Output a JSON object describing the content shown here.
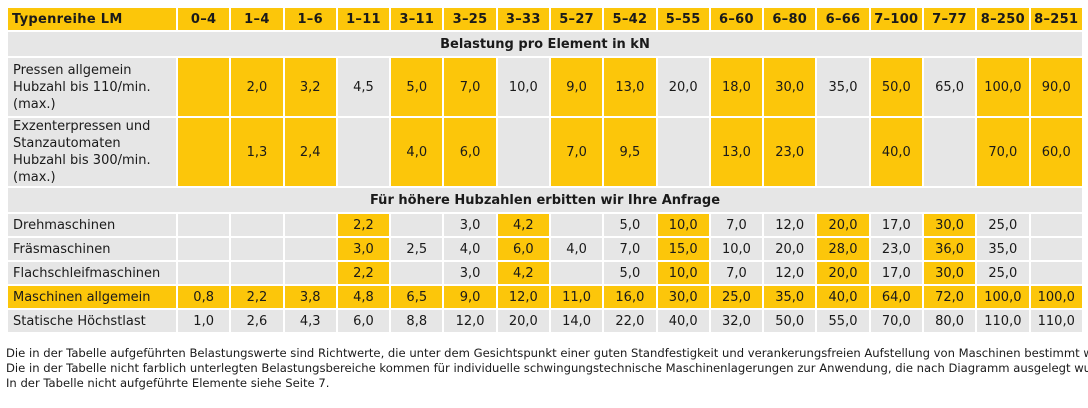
{
  "table": {
    "header_label": "Typenreihe LM",
    "columns": [
      "0–4",
      "1–4",
      "1–6",
      "1–11",
      "3–11",
      "3–25",
      "3–33",
      "5–27",
      "5–42",
      "5–55",
      "6–60",
      "6–80",
      "6–66",
      "7–100",
      "7–77",
      "8–250",
      "8–251"
    ],
    "section_load": "Belastung pro Element in kN",
    "section_inquiry": "Für höhere Hubzahlen erbitten wir Ihre Anfrage",
    "rows_presses": [
      {
        "label": "Pressen allgemein Hubzahl bis 110/min. (max.)",
        "values": [
          "",
          "2,0",
          "3,2",
          "4,5",
          "5,0",
          "7,0",
          "10,0",
          "9,0",
          "13,0",
          "20,0",
          "18,0",
          "30,0",
          "35,0",
          "50,0",
          "65,0",
          "100,0",
          "90,0"
        ],
        "highlight": [
          true,
          true,
          true,
          false,
          true,
          true,
          false,
          true,
          true,
          false,
          true,
          true,
          false,
          true,
          false,
          true,
          true
        ]
      },
      {
        "label": "Exzenterpressen und Stanzautomaten Hubzahl bis 300/min. (max.)",
        "values": [
          "",
          "1,3",
          "2,4",
          "",
          "4,0",
          "6,0",
          "",
          "7,0",
          "9,5",
          "",
          "13,0",
          "23,0",
          "",
          "40,0",
          "",
          "70,0",
          "60,0"
        ],
        "highlight": [
          true,
          true,
          true,
          false,
          true,
          true,
          false,
          true,
          true,
          false,
          true,
          true,
          false,
          true,
          false,
          true,
          true
        ]
      }
    ],
    "rows_machines": [
      {
        "label": "Drehmaschinen",
        "values": [
          "",
          "",
          "",
          "2,2",
          "",
          "3,0",
          "4,2",
          "",
          "5,0",
          "10,0",
          "7,0",
          "12,0",
          "20,0",
          "17,0",
          "30,0",
          "25,0",
          ""
        ],
        "highlight": [
          false,
          false,
          false,
          true,
          false,
          false,
          true,
          false,
          false,
          true,
          false,
          false,
          true,
          false,
          true,
          false,
          false
        ]
      },
      {
        "label": "Fräsmaschinen",
        "values": [
          "",
          "",
          "",
          "3,0",
          "2,5",
          "4,0",
          "6,0",
          "4,0",
          "7,0",
          "15,0",
          "10,0",
          "20,0",
          "28,0",
          "23,0",
          "36,0",
          "35,0",
          ""
        ],
        "highlight": [
          false,
          false,
          false,
          true,
          false,
          false,
          true,
          false,
          false,
          true,
          false,
          false,
          true,
          false,
          true,
          false,
          false
        ]
      },
      {
        "label": "Flachschleifmaschinen",
        "values": [
          "",
          "",
          "",
          "2,2",
          "",
          "3,0",
          "4,2",
          "",
          "5,0",
          "10,0",
          "7,0",
          "12,0",
          "20,0",
          "17,0",
          "30,0",
          "25,0",
          ""
        ],
        "highlight": [
          false,
          false,
          false,
          true,
          false,
          false,
          true,
          false,
          false,
          true,
          false,
          false,
          true,
          false,
          true,
          false,
          false
        ]
      },
      {
        "label": "Maschinen allgemein",
        "values": [
          "0,8",
          "2,2",
          "3,8",
          "4,8",
          "6,5",
          "9,0",
          "12,0",
          "11,0",
          "16,0",
          "30,0",
          "25,0",
          "35,0",
          "40,0",
          "64,0",
          "72,0",
          "100,0",
          "100,0"
        ],
        "highlight": [
          true,
          true,
          true,
          true,
          true,
          true,
          true,
          true,
          true,
          true,
          true,
          true,
          true,
          true,
          true,
          true,
          true
        ],
        "label_highlight": true
      },
      {
        "label": "Statische Höchstlast",
        "values": [
          "1,0",
          "2,6",
          "4,3",
          "6,0",
          "8,8",
          "12,0",
          "20,0",
          "14,0",
          "22,0",
          "40,0",
          "32,0",
          "50,0",
          "55,0",
          "70,0",
          "80,0",
          "110,0",
          "110,0"
        ],
        "highlight": [
          false,
          false,
          false,
          false,
          false,
          false,
          false,
          false,
          false,
          false,
          false,
          false,
          false,
          false,
          false,
          false,
          false
        ]
      }
    ]
  },
  "notes": [
    "Die in der Tabelle aufgeführten Belastungswerte sind Richtwerte, die unter dem Gesichtspunkt einer guten Standfestigkeit und verankerungsfreien Aufstellung von Maschinen bestimmt wurden.",
    "Die in der Tabelle nicht farblich unterlegten Belastungsbereiche kommen für individuelle schwingungstechnische Maschinenlagerungen zur Anwendung, die nach Diagramm ausgelegt wurden.",
    "In der Tabelle nicht aufgeführte Elemente siehe Seite 7."
  ],
  "colors": {
    "accent": "#fcc60a",
    "cell": "#e6e6e6"
  }
}
